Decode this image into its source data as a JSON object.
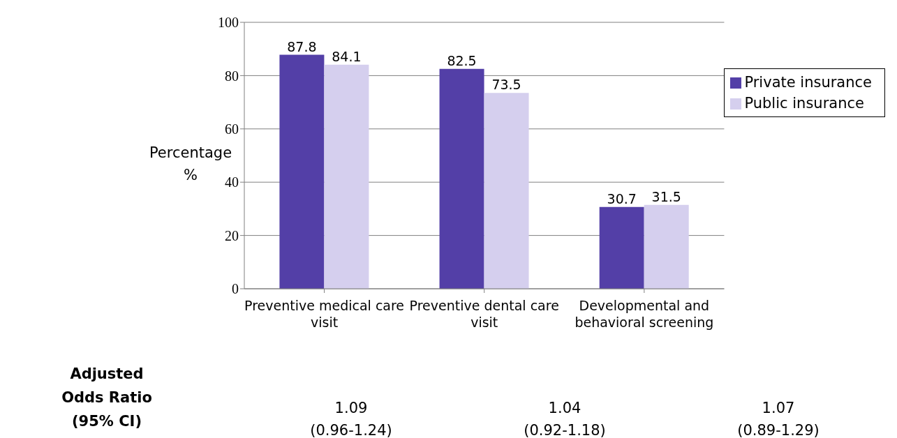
{
  "chart_data": {
    "type": "bar",
    "ylabel": "Percentage %",
    "categories": [
      "Preventive medical care visit",
      "Preventive dental care visit",
      "Developmental and behavioral screening"
    ],
    "series": [
      {
        "name": "Private insurance",
        "color": "#533fa7",
        "values": [
          87.8,
          82.5,
          30.7
        ]
      },
      {
        "name": "Public insurance",
        "color": "#d5cfee",
        "values": [
          84.1,
          73.5,
          31.5
        ]
      }
    ],
    "ylim": [
      0,
      100
    ],
    "yticks": [
      0,
      20,
      40,
      60,
      80,
      100
    ],
    "grid": "y",
    "legend": "top right",
    "data_labels": true,
    "annotations": [
      "Adjusted Odds Ratio (95% CI)",
      "1.09 (0.96-1.24)",
      "1.04 (0.92-1.18)",
      "1.07 (0.89-1.29)"
    ]
  }
}
